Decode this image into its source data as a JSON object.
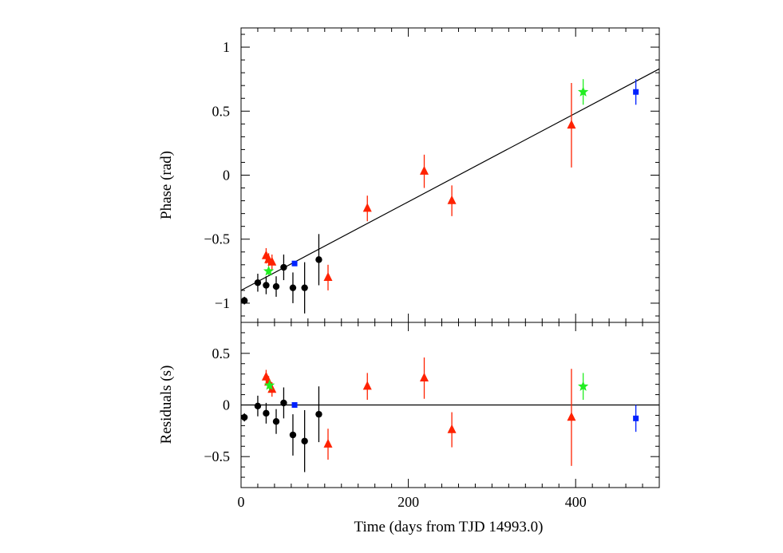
{
  "chart_data": [
    {
      "type": "scatter",
      "ylabel": "Phase (rad)",
      "xlim": [
        0,
        500
      ],
      "ylim": [
        -1.15,
        1.15
      ],
      "yticks": [
        -1,
        -0.5,
        0,
        0.5,
        1
      ],
      "ytick_labels": [
        "−1",
        "−0.5",
        "0",
        "0.5",
        "1"
      ],
      "grid": false,
      "fit_line": {
        "x": [
          0,
          500
        ],
        "y": [
          -0.9,
          0.83
        ]
      },
      "series": [
        {
          "marker": "circle",
          "color": "#000000",
          "points": [
            {
              "x": 4,
              "y": -0.98,
              "err": 0.03
            },
            {
              "x": 20,
              "y": -0.84,
              "err": 0.07
            },
            {
              "x": 30,
              "y": -0.86,
              "err": 0.07
            },
            {
              "x": 42,
              "y": -0.87,
              "err": 0.08
            },
            {
              "x": 51,
              "y": -0.72,
              "err": 0.1
            },
            {
              "x": 62,
              "y": -0.88,
              "err": 0.12
            },
            {
              "x": 76,
              "y": -0.88,
              "err": 0.2
            },
            {
              "x": 93,
              "y": -0.66,
              "err": 0.2
            }
          ]
        },
        {
          "marker": "triangle",
          "color": "#ff2200",
          "points": [
            {
              "x": 30,
              "y": -0.63,
              "err": 0.06
            },
            {
              "x": 33,
              "y": -0.66,
              "err": 0.05
            },
            {
              "x": 37,
              "y": -0.68,
              "err": 0.06
            },
            {
              "x": 104,
              "y": -0.8,
              "err": 0.1
            },
            {
              "x": 151,
              "y": -0.26,
              "err": 0.1
            },
            {
              "x": 219,
              "y": 0.03,
              "err": 0.13
            },
            {
              "x": 252,
              "y": -0.2,
              "err": 0.12
            },
            {
              "x": 395,
              "y": 0.39,
              "err": 0.33
            }
          ]
        },
        {
          "marker": "star",
          "color": "#22ee22",
          "points": [
            {
              "x": 33,
              "y": -0.75,
              "err": 0.03
            },
            {
              "x": 409,
              "y": 0.65,
              "err": 0.1
            }
          ]
        },
        {
          "marker": "square",
          "color": "#0022ff",
          "points": [
            {
              "x": 64,
              "y": -0.69,
              "err": 0.02
            },
            {
              "x": 472,
              "y": 0.65,
              "err": 0.1
            }
          ]
        }
      ]
    },
    {
      "type": "scatter",
      "xlabel": "Time (days from TJD 14993.0)",
      "ylabel": "Residuals (s)",
      "xlim": [
        0,
        500
      ],
      "ylim": [
        -0.8,
        0.8
      ],
      "xticks": [
        0,
        200,
        400
      ],
      "xtick_labels": [
        "0",
        "200",
        "400"
      ],
      "yticks": [
        -0.5,
        0,
        0.5
      ],
      "ytick_labels": [
        "−0.5",
        "0",
        "0.5"
      ],
      "grid": false,
      "zero_line": 0,
      "series": [
        {
          "marker": "circle",
          "color": "#000000",
          "points": [
            {
              "x": 4,
              "y": -0.12,
              "err": 0.04
            },
            {
              "x": 20,
              "y": -0.01,
              "err": 0.1
            },
            {
              "x": 30,
              "y": -0.08,
              "err": 0.1
            },
            {
              "x": 42,
              "y": -0.16,
              "err": 0.12
            },
            {
              "x": 51,
              "y": 0.02,
              "err": 0.15
            },
            {
              "x": 62,
              "y": -0.29,
              "err": 0.2
            },
            {
              "x": 76,
              "y": -0.35,
              "err": 0.3
            },
            {
              "x": 93,
              "y": -0.09,
              "err": 0.27
            }
          ]
        },
        {
          "marker": "triangle",
          "color": "#ff2200",
          "points": [
            {
              "x": 30,
              "y": 0.27,
              "err": 0.07
            },
            {
              "x": 33,
              "y": 0.22,
              "err": 0.06
            },
            {
              "x": 37,
              "y": 0.15,
              "err": 0.07
            },
            {
              "x": 104,
              "y": -0.38,
              "err": 0.15
            },
            {
              "x": 151,
              "y": 0.18,
              "err": 0.13
            },
            {
              "x": 219,
              "y": 0.26,
              "err": 0.2
            },
            {
              "x": 252,
              "y": -0.24,
              "err": 0.17
            },
            {
              "x": 395,
              "y": -0.12,
              "err": 0.47
            }
          ]
        },
        {
          "marker": "star",
          "color": "#22ee22",
          "points": [
            {
              "x": 34,
              "y": 0.19,
              "err": 0.05
            },
            {
              "x": 409,
              "y": 0.18,
              "err": 0.13
            }
          ]
        },
        {
          "marker": "square",
          "color": "#0022ff",
          "points": [
            {
              "x": 64,
              "y": 0.0,
              "err": 0.02
            },
            {
              "x": 472,
              "y": -0.13,
              "err": 0.13
            }
          ]
        }
      ]
    }
  ]
}
